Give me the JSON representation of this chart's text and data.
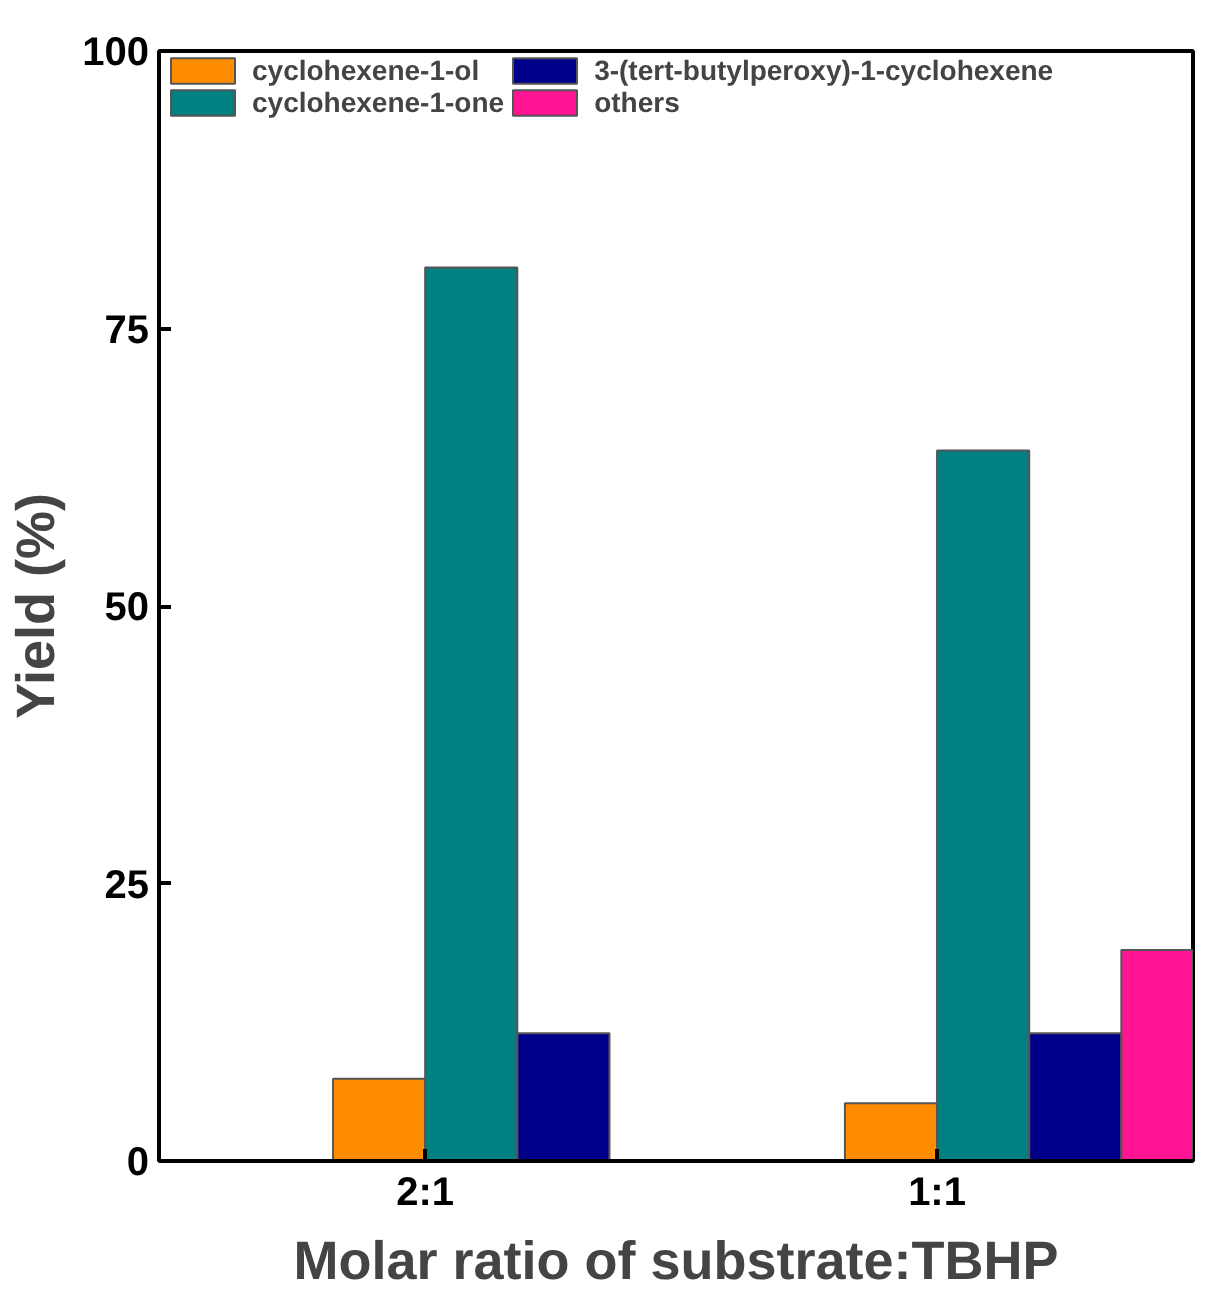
{
  "chart_data": {
    "type": "bar",
    "xlabel": "Molar ratio of substrate:TBHP",
    "ylabel": "Yield (%)",
    "categories": [
      "2:1",
      "1:1"
    ],
    "series": [
      {
        "name": "cyclohexene-1-ol",
        "color": "#ff8c00",
        "values": [
          7.4,
          5.2
        ]
      },
      {
        "name": "cyclohexene-1-one",
        "color": "#008080",
        "values": [
          80.5,
          64.0
        ]
      },
      {
        "name": "3-(tert-butylperoxy)-1-cyclohexene",
        "color": "#00008b",
        "values": [
          11.5,
          11.5
        ]
      },
      {
        "name": "others",
        "color": "#ff1493",
        "values": [
          null,
          19.0
        ]
      }
    ],
    "ylim": [
      0,
      100
    ],
    "yticks": [
      0,
      25,
      50,
      75,
      100
    ],
    "grid": false,
    "legend": "top left"
  }
}
